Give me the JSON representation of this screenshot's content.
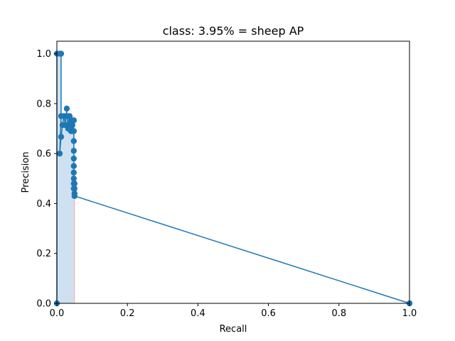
{
  "chart_data": {
    "type": "line",
    "title": "class: 3.95% = sheep AP",
    "xlabel": "Recall",
    "ylabel": "Precision",
    "xlim": [
      0.0,
      1.0
    ],
    "ylim": [
      0.0,
      1.05
    ],
    "x_ticks": [
      "0.0",
      "0.2",
      "0.4",
      "0.6",
      "0.8",
      "1.0"
    ],
    "y_ticks": [
      "0.0",
      "0.2",
      "0.4",
      "0.6",
      "0.8",
      "1.0"
    ],
    "grid": false,
    "colors": {
      "line": "#1f77b4",
      "fill": "#cfe1f0",
      "vertical_line": "#f4a6a6"
    },
    "series": [
      {
        "x": [
          0.0,
          0.0,
          0.008,
          0.012,
          0.012,
          0.008,
          0.012,
          0.016,
          0.02,
          0.024,
          0.028,
          0.028,
          0.032,
          0.032,
          0.036,
          0.036,
          0.036,
          0.04,
          0.04,
          0.044,
          0.044,
          0.048,
          0.048,
          0.048,
          0.048,
          0.048,
          0.048,
          0.048,
          0.048,
          0.048,
          0.048,
          0.05,
          0.05,
          0.05,
          0.05,
          1.0
        ],
        "y": [
          0.0,
          1.0,
          1.0,
          1.0,
          0.75,
          0.6,
          0.667,
          0.714,
          0.75,
          0.714,
          0.78,
          0.75,
          0.714,
          0.7,
          0.75,
          0.72,
          0.7,
          0.733,
          0.69,
          0.714,
          0.69,
          0.733,
          0.69,
          0.65,
          0.611,
          0.58,
          0.55,
          0.524,
          0.5,
          0.48,
          0.46,
          0.48,
          0.46,
          0.44,
          0.43,
          0.0
        ]
      }
    ],
    "filled_area": {
      "x": [
        0.0,
        0.0,
        0.012,
        0.012,
        0.05,
        0.05
      ],
      "y": [
        0.0,
        1.0,
        1.0,
        0.75,
        0.75,
        0.43
      ]
    },
    "vertical_line_x": 0.05
  }
}
